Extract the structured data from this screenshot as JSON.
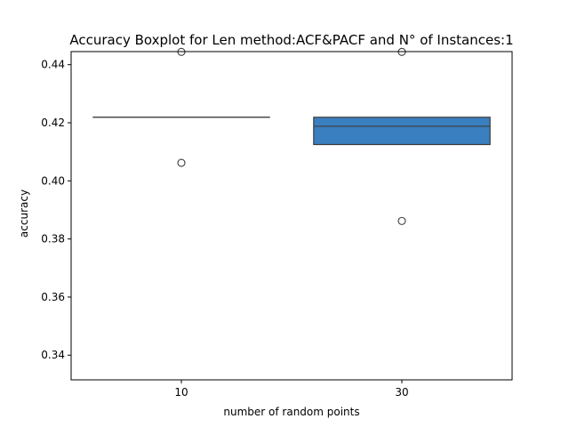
{
  "chart_data": {
    "type": "boxplot",
    "title": "Accuracy Boxplot for Len method:ACF&PACF and N° of Instances:1",
    "xlabel": "number of random points",
    "ylabel": "accuracy",
    "categories": [
      "10",
      "30"
    ],
    "yticks": [
      "0.34",
      "0.36",
      "0.38",
      "0.40",
      "0.42",
      "0.44"
    ],
    "ylim": [
      0.3315,
      0.4445
    ],
    "grid": false,
    "boxes": [
      {
        "category": "10",
        "whisker_low": 0.4219,
        "q1": 0.4219,
        "median": 0.4219,
        "q3": 0.4219,
        "whisker_high": 0.4219,
        "fliers": [
          0.4062,
          0.4444
        ],
        "color": "#4682b4"
      },
      {
        "category": "30",
        "whisker_low": 0.4125,
        "q1": 0.4125,
        "median": 0.4188,
        "q3": 0.4219,
        "whisker_high": 0.4219,
        "fliers": [
          0.3862,
          0.4444
        ],
        "color": "#3a7fbf"
      }
    ]
  }
}
